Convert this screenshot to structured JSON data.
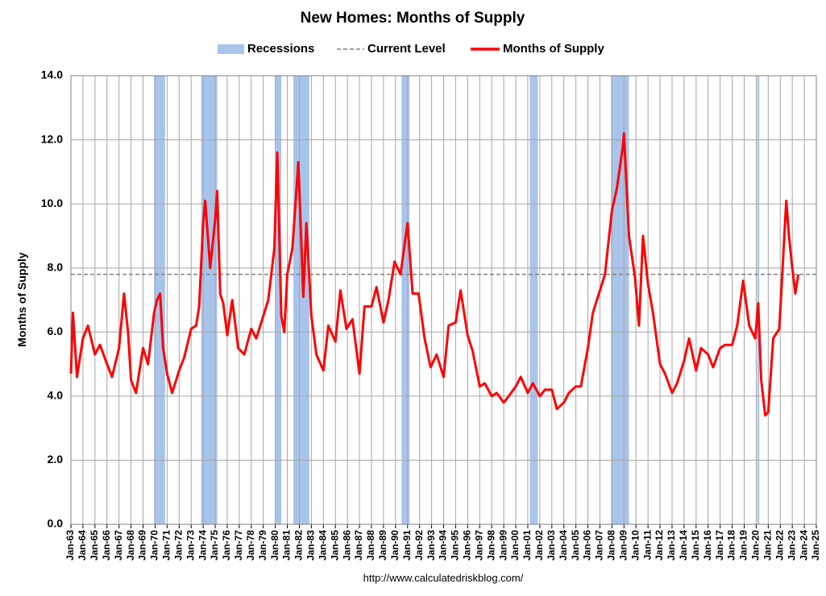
{
  "chart_data": {
    "type": "line",
    "title": "New Homes: Months of Supply",
    "y_label": "Months of Supply",
    "source": "http://www.calculatedriskblog.com/",
    "grid": true,
    "xlim": [
      "1963-01",
      "2025-01"
    ],
    "ylim": [
      0,
      14
    ],
    "yticks": [
      {
        "value": 0,
        "label": "0.0"
      },
      {
        "value": 2,
        "label": "2.0"
      },
      {
        "value": 4,
        "label": "4.0"
      },
      {
        "value": 6,
        "label": "6.0"
      },
      {
        "value": 8,
        "label": "8.0"
      },
      {
        "value": 10,
        "label": "10.0"
      },
      {
        "value": 12,
        "label": "12.0"
      },
      {
        "value": 14,
        "label": "14.0"
      }
    ],
    "xticks": [
      {
        "value": "1963-01",
        "label": "Jan-63"
      },
      {
        "value": "1964-01",
        "label": "Jan-64"
      },
      {
        "value": "1965-01",
        "label": "Jan-65"
      },
      {
        "value": "1966-01",
        "label": "Jan-66"
      },
      {
        "value": "1967-01",
        "label": "Jan-67"
      },
      {
        "value": "1968-01",
        "label": "Jan-68"
      },
      {
        "value": "1969-01",
        "label": "Jan-69"
      },
      {
        "value": "1970-01",
        "label": "Jan-70"
      },
      {
        "value": "1971-01",
        "label": "Jan-71"
      },
      {
        "value": "1972-01",
        "label": "Jan-72"
      },
      {
        "value": "1973-01",
        "label": "Jan-73"
      },
      {
        "value": "1974-01",
        "label": "Jan-74"
      },
      {
        "value": "1975-01",
        "label": "Jan-75"
      },
      {
        "value": "1976-01",
        "label": "Jan-76"
      },
      {
        "value": "1977-01",
        "label": "Jan-77"
      },
      {
        "value": "1978-01",
        "label": "Jan-78"
      },
      {
        "value": "1979-01",
        "label": "Jan-79"
      },
      {
        "value": "1980-01",
        "label": "Jan-80"
      },
      {
        "value": "1981-01",
        "label": "Jan-81"
      },
      {
        "value": "1982-01",
        "label": "Jan-82"
      },
      {
        "value": "1983-01",
        "label": "Jan-83"
      },
      {
        "value": "1984-01",
        "label": "Jan-84"
      },
      {
        "value": "1985-01",
        "label": "Jan-85"
      },
      {
        "value": "1986-01",
        "label": "Jan-86"
      },
      {
        "value": "1987-01",
        "label": "Jan-87"
      },
      {
        "value": "1988-01",
        "label": "Jan-88"
      },
      {
        "value": "1989-01",
        "label": "Jan-89"
      },
      {
        "value": "1990-01",
        "label": "Jan-90"
      },
      {
        "value": "1991-01",
        "label": "Jan-91"
      },
      {
        "value": "1992-01",
        "label": "Jan-92"
      },
      {
        "value": "1993-01",
        "label": "Jan-93"
      },
      {
        "value": "1994-01",
        "label": "Jan-94"
      },
      {
        "value": "1995-01",
        "label": "Jan-95"
      },
      {
        "value": "1996-01",
        "label": "Jan-96"
      },
      {
        "value": "1997-01",
        "label": "Jan-97"
      },
      {
        "value": "1998-01",
        "label": "Jan-98"
      },
      {
        "value": "1999-01",
        "label": "Jan-99"
      },
      {
        "value": "2000-01",
        "label": "Jan-00"
      },
      {
        "value": "2001-01",
        "label": "Jan-01"
      },
      {
        "value": "2002-01",
        "label": "Jan-02"
      },
      {
        "value": "2003-01",
        "label": "Jan-03"
      },
      {
        "value": "2004-01",
        "label": "Jan-04"
      },
      {
        "value": "2005-01",
        "label": "Jan-05"
      },
      {
        "value": "2006-01",
        "label": "Jan-06"
      },
      {
        "value": "2007-01",
        "label": "Jan-07"
      },
      {
        "value": "2008-01",
        "label": "Jan-08"
      },
      {
        "value": "2009-01",
        "label": "Jan-09"
      },
      {
        "value": "2010-01",
        "label": "Jan-10"
      },
      {
        "value": "2011-01",
        "label": "Jan-11"
      },
      {
        "value": "2012-01",
        "label": "Jan-12"
      },
      {
        "value": "2013-01",
        "label": "Jan-13"
      },
      {
        "value": "2014-01",
        "label": "Jan-14"
      },
      {
        "value": "2015-01",
        "label": "Jan-15"
      },
      {
        "value": "2016-01",
        "label": "Jan-16"
      },
      {
        "value": "2017-01",
        "label": "Jan-17"
      },
      {
        "value": "2018-01",
        "label": "Jan-18"
      },
      {
        "value": "2019-01",
        "label": "Jan-19"
      },
      {
        "value": "2020-01",
        "label": "Jan-20"
      },
      {
        "value": "2021-01",
        "label": "Jan-21"
      },
      {
        "value": "2022-01",
        "label": "Jan-22"
      },
      {
        "value": "2023-01",
        "label": "Jan-23"
      },
      {
        "value": "2024-01",
        "label": "Jan-24"
      },
      {
        "value": "2025-01",
        "label": "Jan-25"
      }
    ],
    "recessions": {
      "name": "Recessions",
      "color": "#a9c4eb",
      "periods": [
        [
          "1969-12",
          "1970-11"
        ],
        [
          "1973-11",
          "1975-03"
        ],
        [
          "1980-01",
          "1980-07"
        ],
        [
          "1981-07",
          "1982-11"
        ],
        [
          "1990-07",
          "1991-03"
        ],
        [
          "2001-03",
          "2001-11"
        ],
        [
          "2007-12",
          "2009-06"
        ],
        [
          "2020-02",
          "2020-04"
        ]
      ]
    },
    "current_level": {
      "name": "Current Level",
      "value": 7.8,
      "color": "#808080"
    },
    "x": [
      "1963-01",
      "1963-03",
      "1963-07",
      "1964-01",
      "1964-06",
      "1965-01",
      "1965-06",
      "1966-01",
      "1966-06",
      "1967-01",
      "1967-06",
      "1967-10",
      "1968-01",
      "1968-06",
      "1969-01",
      "1969-06",
      "1969-12",
      "1970-03",
      "1970-06",
      "1970-09",
      "1971-01",
      "1971-06",
      "1972-01",
      "1972-06",
      "1973-01",
      "1973-06",
      "1973-09",
      "1974-01",
      "1974-03",
      "1974-08",
      "1975-01",
      "1975-03",
      "1975-06",
      "1975-09",
      "1976-01",
      "1976-06",
      "1976-12",
      "1977-06",
      "1978-01",
      "1978-06",
      "1979-01",
      "1979-06",
      "1979-12",
      "1980-03",
      "1980-07",
      "1980-10",
      "1981-01",
      "1981-06",
      "1981-12",
      "1982-05",
      "1982-08",
      "1983-01",
      "1983-06",
      "1984-01",
      "1984-06",
      "1985-01",
      "1985-06",
      "1985-12",
      "1986-06",
      "1987-01",
      "1987-06",
      "1988-01",
      "1988-06",
      "1989-01",
      "1989-06",
      "1989-12",
      "1990-06",
      "1991-01",
      "1991-06",
      "1991-12",
      "1992-06",
      "1992-12",
      "1993-06",
      "1994-01",
      "1994-06",
      "1995-01",
      "1995-06",
      "1996-01",
      "1996-06",
      "1997-01",
      "1997-06",
      "1998-01",
      "1998-06",
      "1999-01",
      "1999-06",
      "2000-01",
      "2000-06",
      "2001-01",
      "2001-06",
      "2002-01",
      "2002-06",
      "2003-01",
      "2003-06",
      "2004-01",
      "2004-06",
      "2005-01",
      "2005-06",
      "2006-01",
      "2006-06",
      "2007-01",
      "2007-06",
      "2008-01",
      "2008-06",
      "2008-12",
      "2009-01",
      "2009-06",
      "2009-12",
      "2010-04",
      "2010-08",
      "2011-01",
      "2011-06",
      "2012-01",
      "2012-06",
      "2013-01",
      "2013-06",
      "2014-01",
      "2014-06",
      "2015-01",
      "2015-06",
      "2016-01",
      "2016-06",
      "2017-01",
      "2017-06",
      "2018-01",
      "2018-06",
      "2018-12",
      "2019-06",
      "2019-12",
      "2020-03",
      "2020-06",
      "2020-10",
      "2021-01",
      "2021-06",
      "2021-12",
      "2022-04",
      "2022-07",
      "2022-10",
      "2023-01",
      "2023-04",
      "2023-07"
    ],
    "series": [
      {
        "name": "Months of Supply",
        "color": "#ff0000",
        "values": [
          4.7,
          6.6,
          4.6,
          5.8,
          6.2,
          5.3,
          5.6,
          5.0,
          4.6,
          5.5,
          7.2,
          6.0,
          4.5,
          4.1,
          5.5,
          5.0,
          6.6,
          7.0,
          7.2,
          5.5,
          4.7,
          4.1,
          4.8,
          5.2,
          6.1,
          6.2,
          6.8,
          9.4,
          10.1,
          8.0,
          9.5,
          10.4,
          7.2,
          6.9,
          5.9,
          7.0,
          5.5,
          5.3,
          6.1,
          5.8,
          6.5,
          7.0,
          8.6,
          11.6,
          6.5,
          6.0,
          7.8,
          8.6,
          11.3,
          7.1,
          9.4,
          6.5,
          5.3,
          4.8,
          6.2,
          5.7,
          7.3,
          6.1,
          6.4,
          4.7,
          6.8,
          6.8,
          7.4,
          6.3,
          7.0,
          8.2,
          7.8,
          9.4,
          7.2,
          7.2,
          5.8,
          4.9,
          5.3,
          4.6,
          6.2,
          6.3,
          7.3,
          5.9,
          5.4,
          4.3,
          4.4,
          4.0,
          4.1,
          3.8,
          4.0,
          4.3,
          4.6,
          4.1,
          4.4,
          4.0,
          4.2,
          4.2,
          3.6,
          3.8,
          4.1,
          4.3,
          4.3,
          5.5,
          6.6,
          7.3,
          7.8,
          9.8,
          10.5,
          11.8,
          12.2,
          9.0,
          7.7,
          6.2,
          9.0,
          7.5,
          6.6,
          5.0,
          4.7,
          4.1,
          4.4,
          5.1,
          5.8,
          4.8,
          5.5,
          5.3,
          4.9,
          5.5,
          5.6,
          5.6,
          6.2,
          7.6,
          6.2,
          5.8,
          6.9,
          4.5,
          3.4,
          3.5,
          5.8,
          6.1,
          8.4,
          10.1,
          8.9,
          8.0,
          7.2,
          7.8
        ]
      }
    ]
  }
}
